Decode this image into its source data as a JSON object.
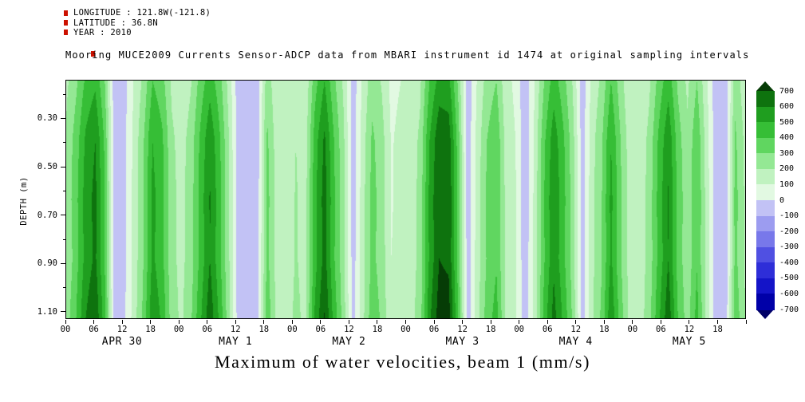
{
  "header": {
    "longitude": "LONGITUDE : 121.8W(-121.8)",
    "latitude": "LATITUDE : 36.8N",
    "year": "YEAR : 2010"
  },
  "title": "Mooring MUCE2009 Currents Sensor-ADCP data from MBARI instrument id 1474 at original sampling intervals",
  "caption": "Maximum of water velocities, beam 1 (mm/s)",
  "chart_data": {
    "type": "heatmap",
    "title": "Mooring MUCE2009 Currents Sensor-ADCP data from MBARI instrument id 1474 at original sampling intervals",
    "units": "mm/s",
    "ylabel": "DEPTH (m)",
    "ylim": [
      0.14,
      1.13
    ],
    "y_tick_labels": [
      "0.30",
      "0.50",
      "0.70",
      "0.90",
      "1.10"
    ],
    "y_tick_values": [
      0.3,
      0.5,
      0.7,
      0.9,
      1.1
    ],
    "x_days": [
      "APR 30",
      "MAY 1",
      "MAY 2",
      "MAY 3",
      "MAY 4",
      "MAY 5"
    ],
    "x_hour_labels": [
      "00",
      "06",
      "12",
      "18"
    ],
    "hours_per_day": 24,
    "total_hours": 144,
    "time_step_hours": 2,
    "depths": [
      0.16,
      0.4,
      0.65,
      0.9,
      1.12
    ],
    "value_range": [
      -700,
      700
    ],
    "levels": [
      -700,
      -600,
      -500,
      -400,
      -300,
      -200,
      -100,
      0,
      100,
      200,
      300,
      400,
      500,
      600,
      700
    ],
    "palette": [
      "#000066",
      "#0000a8",
      "#1414c8",
      "#2e2ed8",
      "#5050e2",
      "#7878ea",
      "#9c9cf0",
      "#c2c2f5",
      "#e2f9e2",
      "#c0f2c0",
      "#94e894",
      "#60d660",
      "#36be36",
      "#1f9e1f",
      "#0e730e",
      "#063c06"
    ],
    "colorbar_labels": [
      "700",
      "600",
      "500",
      "400",
      "300",
      "200",
      "100",
      "0",
      "-100",
      "-200",
      "-300",
      "-400",
      "-500",
      "-600",
      "-700"
    ],
    "values": [
      [
        180,
        280,
        420,
        480,
        300,
        -60,
        -40,
        100,
        220,
        400,
        340,
        180,
        130,
        190,
        340,
        460,
        340,
        160,
        -70,
        -80,
        -50,
        260,
        120,
        100,
        160,
        120,
        360,
        500,
        320,
        180,
        -60,
        120,
        260,
        190,
        70,
        100,
        110,
        180,
        400,
        540,
        530,
        280,
        -70,
        110,
        240,
        300,
        130,
        80,
        -80,
        100,
        300,
        450,
        340,
        190,
        -60,
        130,
        220,
        400,
        240,
        110,
        100,
        180,
        340,
        460,
        280,
        180,
        300,
        120,
        -70,
        -80,
        260,
        140
      ],
      [
        220,
        350,
        520,
        600,
        380,
        -60,
        -40,
        120,
        280,
        500,
        420,
        220,
        160,
        240,
        420,
        580,
        420,
        200,
        -70,
        -80,
        -50,
        320,
        150,
        120,
        200,
        150,
        450,
        620,
        400,
        220,
        -60,
        150,
        320,
        240,
        90,
        130,
        140,
        220,
        500,
        680,
        660,
        350,
        -70,
        140,
        300,
        380,
        160,
        100,
        -80,
        120,
        380,
        560,
        420,
        240,
        -60,
        160,
        280,
        500,
        300,
        140,
        130,
        230,
        420,
        580,
        350,
        220,
        380,
        150,
        -70,
        -80,
        320,
        180
      ],
      [
        230,
        370,
        550,
        630,
        400,
        -60,
        -40,
        130,
        290,
        530,
        440,
        230,
        170,
        250,
        440,
        610,
        440,
        210,
        -70,
        -85,
        -50,
        340,
        160,
        130,
        210,
        160,
        470,
        650,
        420,
        230,
        -65,
        160,
        340,
        250,
        90,
        140,
        150,
        230,
        530,
        700,
        690,
        370,
        -75,
        150,
        320,
        400,
        170,
        110,
        -85,
        130,
        400,
        590,
        440,
        250,
        -65,
        170,
        290,
        530,
        320,
        150,
        140,
        240,
        440,
        610,
        370,
        230,
        400,
        160,
        -75,
        -85,
        340,
        190
      ],
      [
        210,
        360,
        540,
        620,
        390,
        -50,
        -30,
        130,
        290,
        520,
        430,
        230,
        170,
        250,
        430,
        600,
        430,
        210,
        -60,
        -70,
        -40,
        330,
        160,
        130,
        210,
        160,
        460,
        640,
        410,
        230,
        -50,
        160,
        330,
        250,
        100,
        140,
        150,
        230,
        520,
        700,
        680,
        360,
        -60,
        150,
        310,
        390,
        170,
        110,
        -70,
        130,
        390,
        580,
        430,
        250,
        -50,
        170,
        290,
        520,
        310,
        150,
        140,
        240,
        430,
        600,
        360,
        230,
        390,
        160,
        -60,
        -70,
        330,
        190
      ],
      [
        250,
        400,
        600,
        690,
        440,
        -50,
        -30,
        140,
        320,
        580,
        480,
        250,
        180,
        280,
        480,
        670,
        480,
        230,
        -60,
        -70,
        -40,
        370,
        170,
        140,
        230,
        170,
        520,
        710,
        460,
        250,
        -50,
        170,
        370,
        280,
        100,
        150,
        160,
        250,
        580,
        750,
        750,
        400,
        -60,
        160,
        350,
        440,
        180,
        120,
        -70,
        140,
        440,
        640,
        480,
        280,
        -50,
        180,
        320,
        580,
        350,
        160,
        150,
        260,
        480,
        670,
        400,
        250,
        440,
        170,
        -60,
        -70,
        370,
        210
      ]
    ]
  }
}
